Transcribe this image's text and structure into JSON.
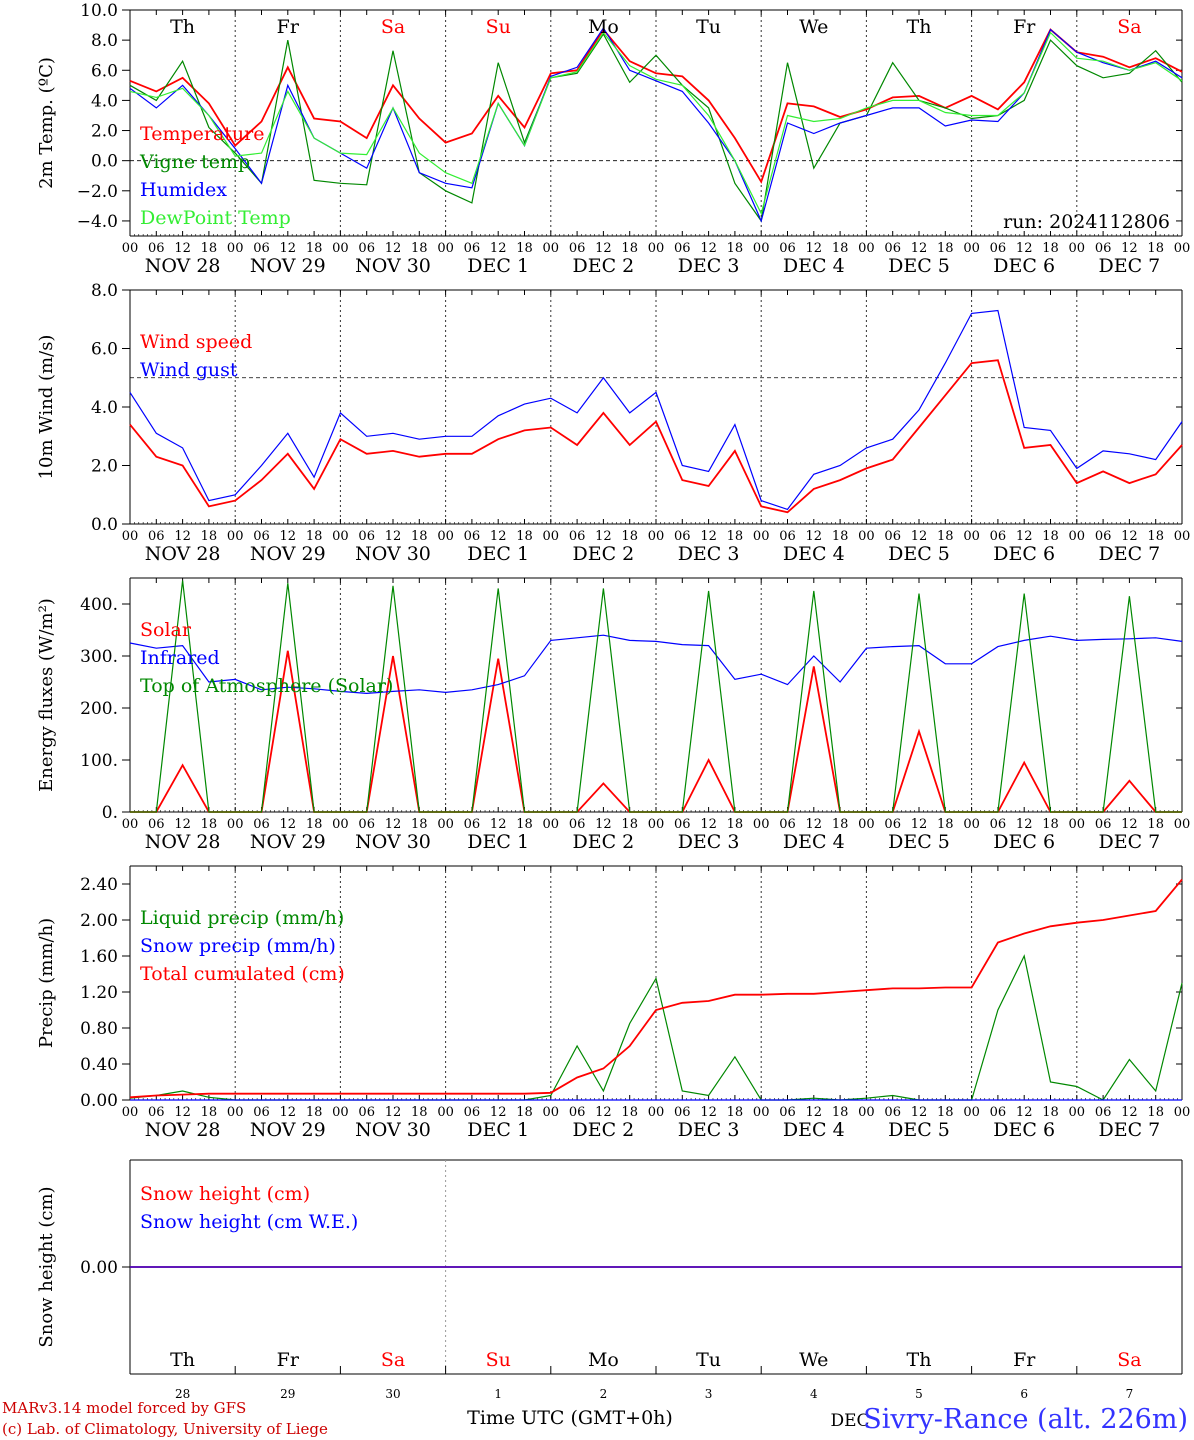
{
  "meta": {
    "run_label": "run: 2024112806",
    "xlabel": "Time UTC (GMT+0h)",
    "station": "Sivry-Rance (alt. 226m)",
    "credit_line1": "MARv3.14 model forced by GFS",
    "credit_line2": "(c) Lab. of Climatology, University of Liege",
    "month_label": "DEC"
  },
  "colors": {
    "red": "#ff0000",
    "green": "#008800",
    "blue": "#0000ff",
    "lightgreen": "#33ee33",
    "weekend": "#ff0000",
    "weekday": "#000000",
    "title_blue": "#3333ff",
    "credit_red": "#cc0000"
  },
  "days": [
    {
      "abbr": "Th",
      "date": "NOV 28",
      "num": "28",
      "weekend": false
    },
    {
      "abbr": "Fr",
      "date": "NOV 29",
      "num": "29",
      "weekend": false
    },
    {
      "abbr": "Sa",
      "date": "NOV 30",
      "num": "30",
      "weekend": true
    },
    {
      "abbr": "Su",
      "date": "DEC  1",
      "num": "1",
      "weekend": true
    },
    {
      "abbr": "Mo",
      "date": "DEC  2",
      "num": "2",
      "weekend": false
    },
    {
      "abbr": "Tu",
      "date": "DEC  3",
      "num": "3",
      "weekend": false
    },
    {
      "abbr": "We",
      "date": "DEC  4",
      "num": "4",
      "weekend": false
    },
    {
      "abbr": "Th",
      "date": "DEC  5",
      "num": "5",
      "weekend": false
    },
    {
      "abbr": "Fr",
      "date": "DEC  6",
      "num": "6",
      "weekend": false
    },
    {
      "abbr": "Sa",
      "date": "DEC  7",
      "num": "7",
      "weekend": true
    }
  ],
  "hour_ticks": [
    "00",
    "06",
    "12",
    "18"
  ],
  "chart_data": [
    {
      "id": "temp",
      "type": "line",
      "ylabel": "2m Temp. (ºC)",
      "ylim": [
        -5,
        10
      ],
      "yticks": [
        -4,
        -2,
        0,
        2,
        4,
        6,
        8,
        10
      ],
      "ytick_labels": [
        "−4.0",
        "−2.0",
        "0.0",
        "2.0",
        "4.0",
        "6.0",
        "8.0",
        "10.0"
      ],
      "refline": 0,
      "x_hours": [
        0,
        6,
        12,
        18,
        24,
        30,
        36,
        42,
        48,
        54,
        60,
        66,
        72,
        78,
        84,
        90,
        96,
        102,
        108,
        114,
        120,
        126,
        132,
        138,
        144,
        150,
        156,
        162,
        168,
        174,
        180,
        186,
        192,
        198,
        204,
        210,
        216,
        222,
        228,
        234,
        240
      ],
      "series": [
        {
          "name": "Temperature",
          "color": "red",
          "values": [
            5.3,
            4.6,
            5.5,
            3.8,
            1.0,
            2.6,
            6.2,
            2.8,
            2.6,
            1.5,
            5.0,
            2.8,
            1.2,
            1.8,
            4.3,
            2.2,
            5.8,
            6.0,
            8.7,
            6.6,
            5.8,
            5.6,
            4.0,
            1.5,
            -1.4,
            3.8,
            3.6,
            2.9,
            3.4,
            4.2,
            4.3,
            3.5,
            4.3,
            3.4,
            5.2,
            8.7,
            7.2,
            6.9,
            6.2,
            6.8,
            5.9
          ]
        },
        {
          "name": "Vigne temp",
          "color": "green",
          "values": [
            5.0,
            4.0,
            6.6,
            2.2,
            0.5,
            -1.5,
            8.0,
            -1.3,
            -1.5,
            -1.6,
            7.3,
            -0.8,
            -2.0,
            -2.8,
            6.5,
            1.2,
            5.5,
            5.8,
            8.4,
            5.2,
            7.0,
            5.0,
            3.5,
            -1.5,
            -4.0,
            6.5,
            -0.5,
            2.5,
            3.0,
            6.5,
            4.0,
            3.5,
            2.8,
            3.0,
            4.0,
            8.0,
            6.3,
            5.5,
            5.8,
            7.3,
            5.2
          ]
        },
        {
          "name": "Humidex",
          "color": "blue",
          "values": [
            4.8,
            3.5,
            5.0,
            3.0,
            0.8,
            -1.5,
            5.0,
            1.5,
            0.5,
            -0.5,
            3.5,
            -0.8,
            -1.5,
            -1.8,
            3.8,
            1.0,
            5.6,
            6.2,
            8.8,
            6.0,
            5.3,
            4.6,
            2.5,
            0.0,
            -4.0,
            2.5,
            1.8,
            2.5,
            3.0,
            3.5,
            3.5,
            2.3,
            2.7,
            2.6,
            4.5,
            8.7,
            7.2,
            6.5,
            6.0,
            6.6,
            5.5
          ]
        },
        {
          "name": "DewPoint Temp",
          "color": "lightgreen",
          "values": [
            4.6,
            4.2,
            4.8,
            3.0,
            0.3,
            0.5,
            4.6,
            1.5,
            0.5,
            0.4,
            3.5,
            0.5,
            -0.8,
            -1.5,
            3.8,
            1.0,
            5.5,
            5.9,
            8.5,
            6.3,
            5.4,
            5.0,
            3.0,
            0.0,
            -3.5,
            3.0,
            2.6,
            2.8,
            3.5,
            4.0,
            4.0,
            3.2,
            3.0,
            3.0,
            4.5,
            8.5,
            6.8,
            6.6,
            6.0,
            6.5,
            5.3
          ]
        }
      ]
    },
    {
      "id": "wind",
      "type": "line",
      "ylabel": "10m Wind (m/s)",
      "ylim": [
        0,
        8
      ],
      "yticks": [
        0,
        2,
        4,
        6,
        8
      ],
      "ytick_labels": [
        "0.0",
        "2.0",
        "4.0",
        "6.0",
        "8.0"
      ],
      "refline": 5,
      "x_hours": [
        0,
        6,
        12,
        18,
        24,
        30,
        36,
        42,
        48,
        54,
        60,
        66,
        72,
        78,
        84,
        90,
        96,
        102,
        108,
        114,
        120,
        126,
        132,
        138,
        144,
        150,
        156,
        162,
        168,
        174,
        180,
        186,
        192,
        198,
        204,
        210,
        216,
        222,
        228,
        234,
        240
      ],
      "series": [
        {
          "name": "Wind speed",
          "color": "red",
          "values": [
            3.4,
            2.3,
            2.0,
            0.6,
            0.8,
            1.5,
            2.4,
            1.2,
            2.9,
            2.4,
            2.5,
            2.3,
            2.4,
            2.4,
            2.9,
            3.2,
            3.3,
            2.7,
            3.8,
            2.7,
            3.5,
            1.5,
            1.3,
            2.5,
            0.6,
            0.4,
            1.2,
            1.5,
            1.9,
            2.2,
            3.3,
            4.4,
            5.5,
            5.6,
            2.6,
            2.7,
            1.4,
            1.8,
            1.4,
            1.7,
            2.7
          ]
        },
        {
          "name": "Wind gust",
          "color": "blue",
          "values": [
            4.5,
            3.1,
            2.6,
            0.8,
            1.0,
            2.0,
            3.1,
            1.6,
            3.8,
            3.0,
            3.1,
            2.9,
            3.0,
            3.0,
            3.7,
            4.1,
            4.3,
            3.8,
            5.0,
            3.8,
            4.5,
            2.0,
            1.8,
            3.4,
            0.8,
            0.5,
            1.7,
            2.0,
            2.6,
            2.9,
            3.9,
            5.5,
            7.2,
            7.3,
            3.3,
            3.2,
            1.9,
            2.5,
            2.4,
            2.2,
            3.5
          ]
        }
      ]
    },
    {
      "id": "energy",
      "type": "line",
      "ylabel": "Energy fluxes (W/m²)",
      "ylim": [
        0,
        450
      ],
      "yticks": [
        0,
        100,
        200,
        300,
        400
      ],
      "ytick_labels": [
        "0.",
        "100.",
        "200.",
        "300.",
        "400."
      ],
      "x_hours": [
        0,
        6,
        12,
        18,
        24,
        30,
        36,
        42,
        48,
        54,
        60,
        66,
        72,
        78,
        84,
        90,
        96,
        102,
        108,
        114,
        120,
        126,
        132,
        138,
        144,
        150,
        156,
        162,
        168,
        174,
        180,
        186,
        192,
        198,
        204,
        210,
        216,
        222,
        228,
        234,
        240
      ],
      "series": [
        {
          "name": "Solar",
          "color": "red",
          "values": [
            0,
            0,
            90,
            0,
            0,
            0,
            310,
            0,
            0,
            0,
            300,
            0,
            0,
            0,
            295,
            0,
            0,
            0,
            55,
            0,
            0,
            0,
            100,
            0,
            0,
            0,
            280,
            0,
            0,
            0,
            155,
            0,
            0,
            0,
            95,
            0,
            0,
            0,
            60,
            0,
            0
          ]
        },
        {
          "name": "Infrared",
          "color": "blue",
          "values": [
            325,
            315,
            320,
            250,
            255,
            235,
            240,
            237,
            232,
            228,
            232,
            235,
            230,
            235,
            245,
            262,
            330,
            335,
            340,
            330,
            328,
            322,
            320,
            255,
            265,
            245,
            300,
            250,
            315,
            318,
            320,
            285,
            285,
            318,
            330,
            338,
            330,
            332,
            333,
            335,
            328
          ]
        },
        {
          "name": "Top of Atmosphere (Solar)",
          "color": "green",
          "values": [
            0,
            0,
            445,
            0,
            0,
            0,
            440,
            0,
            0,
            0,
            435,
            0,
            0,
            0,
            430,
            0,
            0,
            0,
            430,
            0,
            0,
            0,
            425,
            0,
            0,
            0,
            425,
            0,
            0,
            0,
            420,
            0,
            0,
            0,
            420,
            0,
            0,
            0,
            415,
            0,
            0
          ]
        }
      ]
    },
    {
      "id": "precip",
      "type": "line",
      "ylabel": "Precip (mm/h)",
      "ylim": [
        0,
        2.6
      ],
      "yticks": [
        0,
        0.4,
        0.8,
        1.2,
        1.6,
        2.0,
        2.4
      ],
      "ytick_labels": [
        "0.00",
        "0.40",
        "0.80",
        "1.20",
        "1.60",
        "2.00",
        "2.40"
      ],
      "x_hours": [
        0,
        6,
        12,
        18,
        24,
        30,
        36,
        42,
        48,
        54,
        60,
        66,
        72,
        78,
        84,
        90,
        96,
        102,
        108,
        114,
        120,
        126,
        132,
        138,
        144,
        150,
        156,
        162,
        168,
        174,
        180,
        186,
        192,
        198,
        204,
        210,
        216,
        222,
        228,
        234,
        240
      ],
      "series": [
        {
          "name": "Liquid precip (mm/h)",
          "color": "green",
          "values": [
            0.02,
            0.05,
            0.1,
            0.03,
            0.0,
            0.0,
            0.0,
            0.0,
            0.0,
            0.0,
            0.0,
            0.0,
            0.0,
            0.0,
            0.0,
            0.0,
            0.05,
            0.6,
            0.1,
            0.85,
            1.35,
            0.1,
            0.05,
            0.48,
            0.0,
            0.0,
            0.02,
            0.0,
            0.02,
            0.05,
            0.0,
            0.0,
            0.0,
            1.0,
            1.6,
            0.2,
            0.15,
            0.0,
            0.45,
            0.1,
            1.3
          ]
        },
        {
          "name": "Snow precip (mm/h)",
          "color": "blue",
          "values": [
            0,
            0,
            0,
            0,
            0,
            0,
            0,
            0,
            0,
            0,
            0,
            0,
            0,
            0,
            0,
            0,
            0,
            0,
            0,
            0,
            0,
            0,
            0,
            0,
            0,
            0,
            0,
            0,
            0,
            0,
            0,
            0,
            0,
            0,
            0,
            0,
            0,
            0,
            0,
            0,
            0
          ]
        },
        {
          "name": "Total cumulated (cm)",
          "color": "red",
          "values": [
            0.03,
            0.05,
            0.06,
            0.07,
            0.07,
            0.07,
            0.07,
            0.07,
            0.07,
            0.07,
            0.07,
            0.07,
            0.07,
            0.07,
            0.07,
            0.07,
            0.08,
            0.25,
            0.35,
            0.6,
            1.0,
            1.08,
            1.1,
            1.17,
            1.17,
            1.18,
            1.18,
            1.2,
            1.22,
            1.24,
            1.24,
            1.25,
            1.25,
            1.75,
            1.85,
            1.93,
            1.97,
            2.0,
            2.05,
            2.1,
            2.45
          ]
        }
      ]
    },
    {
      "id": "snow",
      "type": "line",
      "ylabel": "Snow height (cm)",
      "ylim": [
        -1,
        1
      ],
      "yticks": [
        0
      ],
      "ytick_labels": [
        "0.00"
      ],
      "x_hours": [
        0,
        240
      ],
      "series": [
        {
          "name": "Snow height (cm)",
          "color": "red",
          "values": [
            0,
            0
          ]
        },
        {
          "name": "Snow height (cm W.E.)",
          "color": "blue",
          "values": [
            0,
            0
          ]
        }
      ]
    }
  ]
}
